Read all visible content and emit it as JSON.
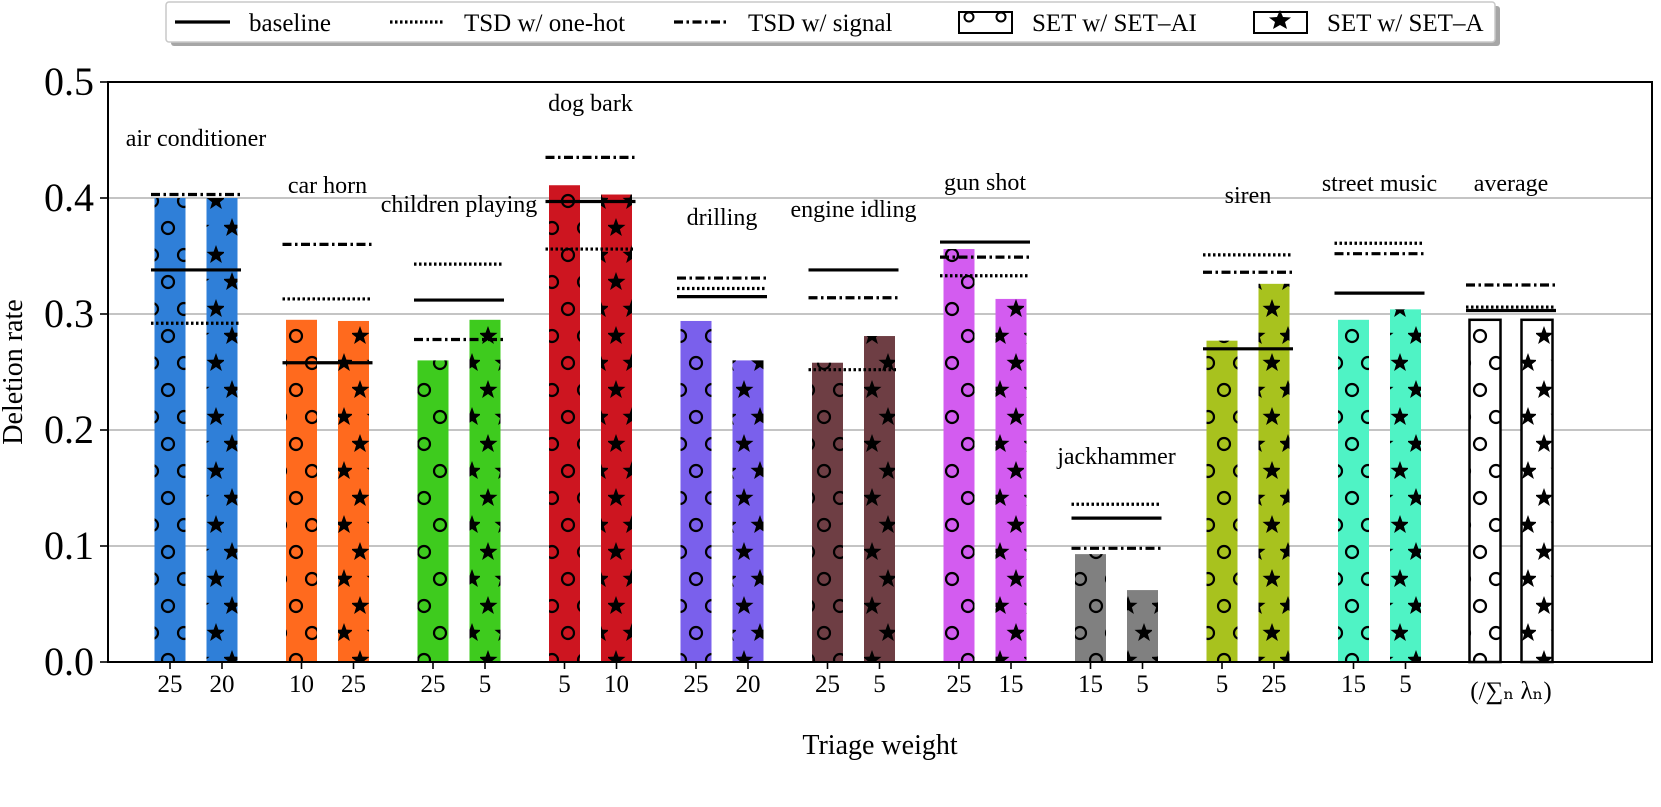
{
  "chart_data": {
    "type": "bar",
    "xlabel": "Triage weight",
    "ylabel": "Deletion rate",
    "ylim": [
      0,
      0.5
    ],
    "yticks": [
      "0.0",
      "0.1",
      "0.2",
      "0.3",
      "0.4",
      "0.5"
    ],
    "grid": true,
    "legend": {
      "placement": "top",
      "entries": [
        {
          "key": "baseline",
          "label": "baseline",
          "style": "solid"
        },
        {
          "key": "tsd_onehot",
          "label": "TSD w/ one-hot",
          "style": "dotted"
        },
        {
          "key": "tsd_signal",
          "label": "TSD w/ signal",
          "style": "dashdot"
        },
        {
          "key": "set_ai",
          "label": "SET w/ SET–AI",
          "style": "circles"
        },
        {
          "key": "set_a",
          "label": "SET w/ SET–A",
          "style": "stars"
        }
      ]
    },
    "groups": [
      {
        "name": "air conditioner",
        "color": "#2f7fd8",
        "weights": [
          "25",
          "20"
        ],
        "set_ai": 0.4,
        "set_a": 0.4,
        "baseline": 0.338,
        "tsd_onehot": 0.292,
        "tsd_signal": 0.403
      },
      {
        "name": "car horn",
        "color": "#ff6a1e",
        "weights": [
          "10",
          "25"
        ],
        "set_ai": 0.295,
        "set_a": 0.294,
        "baseline": 0.258,
        "tsd_onehot": 0.313,
        "tsd_signal": 0.36
      },
      {
        "name": "children playing",
        "color": "#3ecb1e",
        "weights": [
          "25",
          "5"
        ],
        "set_ai": 0.26,
        "set_a": 0.295,
        "baseline": 0.312,
        "tsd_onehot": 0.343,
        "tsd_signal": 0.278
      },
      {
        "name": "dog bark",
        "color": "#cd1520",
        "weights": [
          "5",
          "10"
        ],
        "set_ai": 0.411,
        "set_a": 0.403,
        "baseline": 0.397,
        "tsd_onehot": 0.356,
        "tsd_signal": 0.435
      },
      {
        "name": "drilling",
        "color": "#7a60ec",
        "weights": [
          "25",
          "20"
        ],
        "set_ai": 0.294,
        "set_a": 0.26,
        "baseline": 0.315,
        "tsd_onehot": 0.322,
        "tsd_signal": 0.331
      },
      {
        "name": "engine idling",
        "color": "#6e3e44",
        "weights": [
          "25",
          "5"
        ],
        "set_ai": 0.258,
        "set_a": 0.281,
        "baseline": 0.338,
        "tsd_onehot": 0.252,
        "tsd_signal": 0.314
      },
      {
        "name": "gun shot",
        "color": "#d35cf0",
        "weights": [
          "25",
          "15"
        ],
        "set_ai": 0.356,
        "set_a": 0.313,
        "baseline": 0.362,
        "tsd_onehot": 0.333,
        "tsd_signal": 0.349
      },
      {
        "name": "jackhammer",
        "color": "#808080",
        "weights": [
          "15",
          "5"
        ],
        "set_ai": 0.093,
        "set_a": 0.062,
        "baseline": 0.124,
        "tsd_onehot": 0.136,
        "tsd_signal": 0.098
      },
      {
        "name": "siren",
        "color": "#a8c21e",
        "weights": [
          "5",
          "25"
        ],
        "set_ai": 0.277,
        "set_a": 0.326,
        "baseline": 0.27,
        "tsd_onehot": 0.351,
        "tsd_signal": 0.336
      },
      {
        "name": "street music",
        "color": "#4ff3c5",
        "weights": [
          "15",
          "5"
        ],
        "set_ai": 0.295,
        "set_a": 0.304,
        "baseline": 0.318,
        "tsd_onehot": 0.361,
        "tsd_signal": 0.352
      },
      {
        "name": "average",
        "color": "#ffffff",
        "weights": [],
        "xtick": "(/∑ₙ λₙ)",
        "set_ai": 0.295,
        "set_a": 0.295,
        "baseline": 0.303,
        "tsd_onehot": 0.306,
        "tsd_signal": 0.325
      }
    ]
  }
}
